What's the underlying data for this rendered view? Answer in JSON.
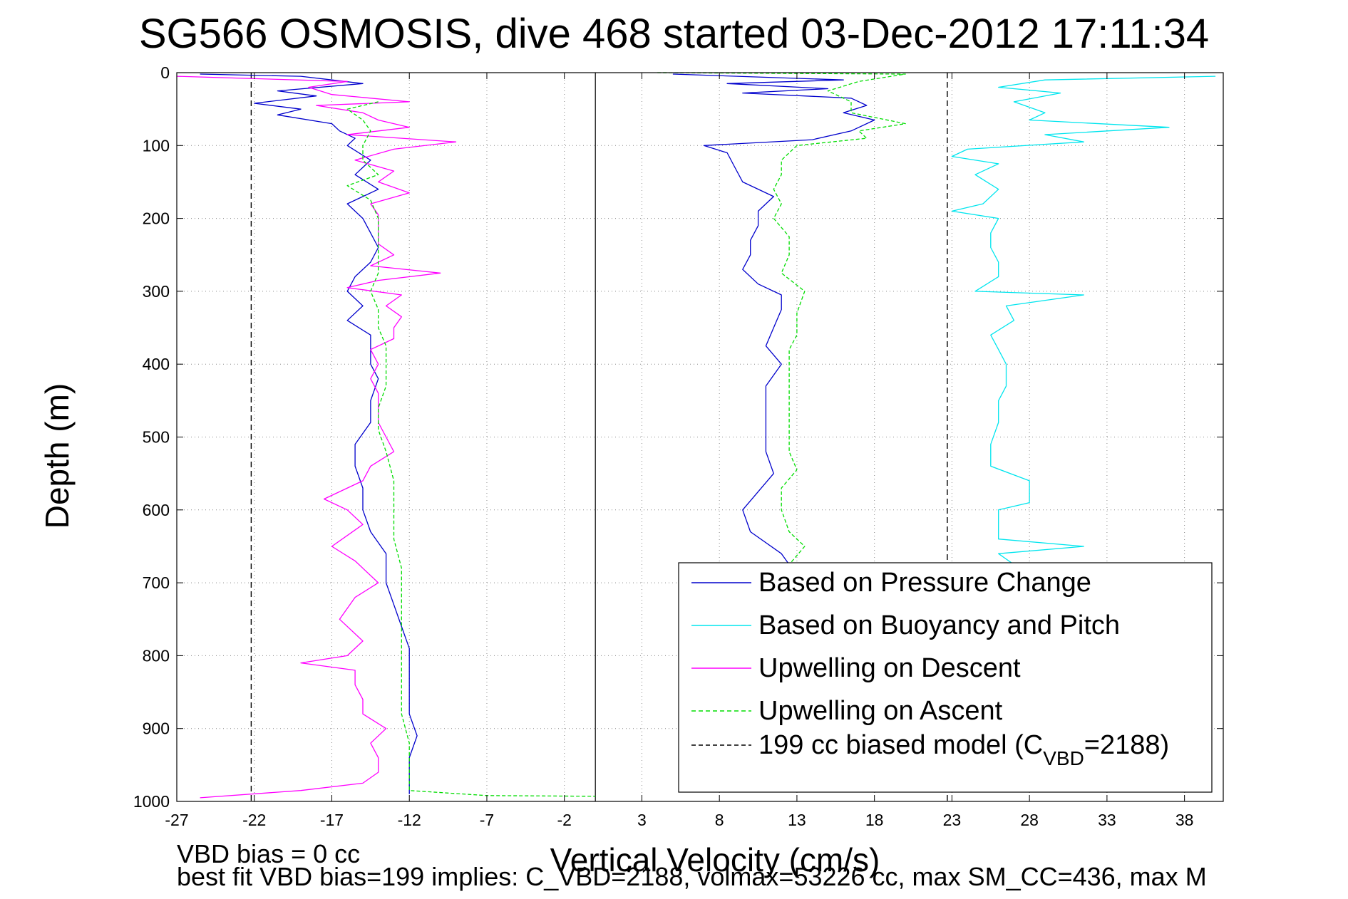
{
  "colors": {
    "pressure": "#0000cc",
    "buoyancy": "#00e5ee",
    "upwell_descent": "#ff00ff",
    "upwell_ascent": "#00dd00",
    "model": "#000000",
    "grid": "#888888"
  },
  "notes": {
    "vbd_bias": "VBD bias = 0 cc",
    "best_fit": "best fit VBD bias=199 implies: C_VBD=2188, volmax=53226 cc, max SM_CC=436, max M"
  },
  "chart_data": {
    "type": "line",
    "title": "SG566 OSMOSIS, dive 468 started 03-Dec-2012 17:11:34",
    "xlabel": "Vertical Velocity (cm/s)",
    "ylabel": "Depth (m)",
    "xlim": [
      -27,
      40.5
    ],
    "ylim": [
      1000,
      0
    ],
    "y_reversed": true,
    "xticks": [
      -27,
      -22,
      -17,
      -12,
      -7,
      -2,
      3,
      8,
      13,
      18,
      23,
      28,
      33,
      38
    ],
    "yticks": [
      0,
      100,
      200,
      300,
      400,
      500,
      600,
      700,
      800,
      900,
      1000
    ],
    "grid": true,
    "legend_position": "lower-right",
    "legend": [
      {
        "key": "pressure",
        "label": "Based on Pressure Change",
        "style": "solid"
      },
      {
        "key": "buoyancy",
        "label": "Based on Buoyancy and Pitch",
        "style": "solid"
      },
      {
        "key": "upwell_descent",
        "label": "Upwelling on Descent",
        "style": "solid"
      },
      {
        "key": "upwell_ascent",
        "label": "Upwelling on Ascent",
        "style": "dashed"
      },
      {
        "key": "model",
        "label_pre": "199 cc biased model (C",
        "label_sub": "VBD",
        "label_post": "=2188)",
        "style": "dashed"
      }
    ],
    "reference_lines": {
      "zero_line_x": 0,
      "model_bias_x": [
        -22.2,
        22.7
      ]
    },
    "series": [
      {
        "key": "pressure",
        "name": "Based on Pressure Change",
        "points": [
          [
            -25.5,
            2
          ],
          [
            -19,
            5
          ],
          [
            -17,
            10
          ],
          [
            -15,
            15
          ],
          [
            -20.5,
            25
          ],
          [
            -18,
            32
          ],
          [
            -22,
            42
          ],
          [
            -19,
            50
          ],
          [
            -20.5,
            58
          ],
          [
            -17,
            70
          ],
          [
            -16.5,
            80
          ],
          [
            -15.5,
            90
          ],
          [
            -16,
            100
          ],
          [
            -14.5,
            120
          ],
          [
            -15.5,
            140
          ],
          [
            -14,
            160
          ],
          [
            -16,
            180
          ],
          [
            -15,
            200
          ],
          [
            -14.5,
            220
          ],
          [
            -14,
            240
          ],
          [
            -14.5,
            260
          ],
          [
            -15.5,
            280
          ],
          [
            -16,
            300
          ],
          [
            -15,
            320
          ],
          [
            -16,
            340
          ],
          [
            -14.5,
            360
          ],
          [
            -14.5,
            380
          ],
          [
            -14.5,
            400
          ],
          [
            -14,
            420
          ],
          [
            -14.5,
            450
          ],
          [
            -14.5,
            480
          ],
          [
            -15.5,
            510
          ],
          [
            -15.5,
            540
          ],
          [
            -15,
            570
          ],
          [
            -15,
            600
          ],
          [
            -14.5,
            630
          ],
          [
            -13.5,
            660
          ],
          [
            -13.5,
            700
          ],
          [
            -13,
            730
          ],
          [
            -12.5,
            760
          ],
          [
            -12,
            790
          ],
          [
            -12,
            820
          ],
          [
            -12,
            850
          ],
          [
            -12,
            880
          ],
          [
            -11.5,
            910
          ],
          [
            -12,
            940
          ],
          [
            -12,
            970
          ],
          [
            -12,
            990
          ]
        ]
      },
      {
        "key": "pressure",
        "name": "Based on Pressure Change",
        "points": [
          [
            5,
            2
          ],
          [
            16,
            10
          ],
          [
            8.5,
            15
          ],
          [
            15,
            22
          ],
          [
            9.5,
            28
          ],
          [
            16.5,
            35
          ],
          [
            17.5,
            45
          ],
          [
            16,
            55
          ],
          [
            18,
            65
          ],
          [
            16.5,
            80
          ],
          [
            14,
            92
          ],
          [
            7,
            100
          ],
          [
            8.5,
            110
          ],
          [
            9,
            130
          ],
          [
            9.5,
            150
          ],
          [
            11.5,
            170
          ],
          [
            10.5,
            190
          ],
          [
            10.5,
            210
          ],
          [
            10,
            230
          ],
          [
            10,
            250
          ],
          [
            9.5,
            270
          ],
          [
            10.5,
            290
          ],
          [
            12,
            305
          ],
          [
            12,
            325
          ],
          [
            11.5,
            350
          ],
          [
            11,
            375
          ],
          [
            12,
            400
          ],
          [
            11,
            430
          ],
          [
            11,
            460
          ],
          [
            11,
            490
          ],
          [
            11,
            520
          ],
          [
            11.5,
            550
          ],
          [
            10.5,
            575
          ],
          [
            9.5,
            600
          ],
          [
            10,
            630
          ],
          [
            12,
            660
          ],
          [
            12.5,
            675
          ]
        ]
      },
      {
        "key": "buoyancy",
        "name": "Based on Buoyancy and Pitch",
        "points": [
          [
            40,
            5
          ],
          [
            29,
            10
          ],
          [
            26,
            20
          ],
          [
            30,
            28
          ],
          [
            27,
            40
          ],
          [
            29,
            55
          ],
          [
            28,
            65
          ],
          [
            37,
            75
          ],
          [
            29,
            85
          ],
          [
            31.5,
            95
          ],
          [
            24,
            105
          ],
          [
            23,
            115
          ],
          [
            26,
            125
          ],
          [
            24.5,
            140
          ],
          [
            26,
            160
          ],
          [
            25,
            180
          ],
          [
            23,
            190
          ],
          [
            26,
            200
          ],
          [
            25.5,
            220
          ],
          [
            25.5,
            240
          ],
          [
            26,
            260
          ],
          [
            26,
            280
          ],
          [
            24.5,
            300
          ],
          [
            31.5,
            305
          ],
          [
            26.5,
            320
          ],
          [
            27,
            340
          ],
          [
            25.5,
            360
          ],
          [
            26,
            380
          ],
          [
            26.5,
            400
          ],
          [
            26.5,
            430
          ],
          [
            26,
            450
          ],
          [
            26,
            480
          ],
          [
            25.5,
            510
          ],
          [
            25.5,
            540
          ],
          [
            28,
            560
          ],
          [
            28,
            590
          ],
          [
            26,
            600
          ],
          [
            26,
            640
          ],
          [
            31.5,
            650
          ],
          [
            26,
            660
          ],
          [
            27,
            675
          ]
        ]
      },
      {
        "key": "upwell_descent",
        "name": "Upwelling on Descent",
        "points": [
          [
            -27,
            5
          ],
          [
            -16,
            12
          ],
          [
            -18.5,
            20
          ],
          [
            -17,
            30
          ],
          [
            -12,
            40
          ],
          [
            -18,
            45
          ],
          [
            -15,
            55
          ],
          [
            -14,
            65
          ],
          [
            -12,
            75
          ],
          [
            -16,
            85
          ],
          [
            -9,
            95
          ],
          [
            -13,
            105
          ],
          [
            -15.5,
            120
          ],
          [
            -13,
            135
          ],
          [
            -14,
            150
          ],
          [
            -12,
            165
          ],
          [
            -14.5,
            180
          ],
          [
            -14,
            195
          ],
          [
            -14,
            215
          ],
          [
            -14,
            235
          ],
          [
            -13,
            250
          ],
          [
            -14.5,
            265
          ],
          [
            -10,
            275
          ],
          [
            -14,
            285
          ],
          [
            -16,
            295
          ],
          [
            -12.5,
            305
          ],
          [
            -13.5,
            320
          ],
          [
            -12.5,
            335
          ],
          [
            -13,
            350
          ],
          [
            -13,
            365
          ],
          [
            -14.5,
            380
          ],
          [
            -14,
            400
          ],
          [
            -14.5,
            420
          ],
          [
            -14,
            440
          ],
          [
            -14,
            460
          ],
          [
            -14,
            480
          ],
          [
            -13.5,
            500
          ],
          [
            -13,
            520
          ],
          [
            -14.5,
            540
          ],
          [
            -15,
            560
          ],
          [
            -17.5,
            585
          ],
          [
            -16,
            600
          ],
          [
            -15,
            620
          ],
          [
            -17,
            650
          ],
          [
            -15.5,
            670
          ],
          [
            -14,
            700
          ],
          [
            -15.5,
            720
          ],
          [
            -16.5,
            750
          ],
          [
            -15,
            780
          ],
          [
            -16,
            800
          ],
          [
            -19,
            810
          ],
          [
            -15.5,
            820
          ],
          [
            -15.5,
            840
          ],
          [
            -15,
            860
          ],
          [
            -15,
            880
          ],
          [
            -13.5,
            900
          ],
          [
            -14.5,
            920
          ],
          [
            -14,
            940
          ],
          [
            -14,
            960
          ],
          [
            -15,
            975
          ],
          [
            -19,
            985
          ],
          [
            -25.5,
            995
          ]
        ]
      },
      {
        "key": "upwell_ascent",
        "name": "Upwelling on Ascent",
        "points": [
          [
            -14,
            40
          ],
          [
            -16,
            50
          ],
          [
            -15,
            65
          ],
          [
            -14.5,
            80
          ],
          [
            -15,
            100
          ],
          [
            -15,
            120
          ],
          [
            -14,
            140
          ],
          [
            -16,
            155
          ],
          [
            -14.5,
            175
          ],
          [
            -14,
            200
          ],
          [
            -14,
            225
          ],
          [
            -14,
            250
          ],
          [
            -14,
            275
          ],
          [
            -14.5,
            300
          ],
          [
            -14,
            325
          ],
          [
            -14,
            350
          ],
          [
            -13.5,
            375
          ],
          [
            -13.5,
            400
          ],
          [
            -13.5,
            430
          ],
          [
            -14,
            460
          ],
          [
            -14,
            490
          ],
          [
            -13.5,
            520
          ],
          [
            -13,
            560
          ],
          [
            -13,
            600
          ],
          [
            -13,
            640
          ],
          [
            -12.5,
            680
          ],
          [
            -12.5,
            720
          ],
          [
            -12.5,
            760
          ],
          [
            -12.5,
            800
          ],
          [
            -12.5,
            840
          ],
          [
            -12.5,
            880
          ],
          [
            -12,
            920
          ],
          [
            -12,
            960
          ],
          [
            -12,
            985
          ],
          [
            -7,
            992
          ],
          [
            0,
            993
          ]
        ]
      },
      {
        "key": "upwell_ascent",
        "name": "Upwelling on Ascent",
        "points": [
          [
            4,
            0
          ],
          [
            20,
            2
          ],
          [
            17,
            12
          ],
          [
            15,
            25
          ],
          [
            16.5,
            40
          ],
          [
            16.5,
            55
          ],
          [
            20,
            70
          ],
          [
            17,
            80
          ],
          [
            17.5,
            90
          ],
          [
            13,
            100
          ],
          [
            12,
            120
          ],
          [
            12,
            140
          ],
          [
            11.5,
            160
          ],
          [
            12,
            180
          ],
          [
            11.5,
            200
          ],
          [
            12.5,
            225
          ],
          [
            12.5,
            250
          ],
          [
            12,
            275
          ],
          [
            13.5,
            300
          ],
          [
            13,
            330
          ],
          [
            13,
            360
          ],
          [
            12.5,
            380
          ],
          [
            12.5,
            400
          ],
          [
            12.5,
            430
          ],
          [
            12.5,
            460
          ],
          [
            12.5,
            490
          ],
          [
            12.5,
            520
          ],
          [
            13,
            545
          ],
          [
            12,
            570
          ],
          [
            12,
            600
          ],
          [
            12.5,
            630
          ],
          [
            13.5,
            650
          ],
          [
            12.5,
            675
          ]
        ]
      }
    ]
  }
}
